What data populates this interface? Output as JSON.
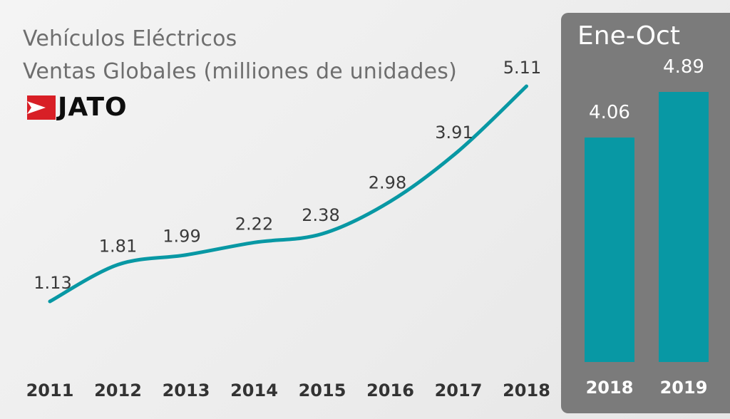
{
  "title_line1": "Vehículos Eléctricos",
  "title_line2": "Ventas Globales (milliones de unidades)",
  "logo_text": "JATO",
  "colors": {
    "line": "#0898a4",
    "bar": "#0898a4",
    "panel": "#7b7b7b",
    "logo_red": "#d81f26"
  },
  "chart_data": [
    {
      "type": "line",
      "title": "Vehículos Eléctricos Ventas Globales (milliones de unidades)",
      "x": [
        "2011",
        "2012",
        "2013",
        "2014",
        "2015",
        "2016",
        "2017",
        "2018"
      ],
      "values": [
        1.13,
        1.81,
        1.99,
        2.22,
        2.38,
        2.98,
        3.91,
        5.11
      ],
      "data_labels": [
        "1.13",
        "1.81",
        "1.99",
        "2.22",
        "2.38",
        "2.98",
        "3.91",
        "5.11"
      ],
      "ylim": [
        0,
        6
      ],
      "grid": false
    },
    {
      "type": "bar",
      "title": "Ene-Oct",
      "categories": [
        "2018",
        "2019"
      ],
      "values": [
        4.06,
        4.89
      ],
      "data_labels": [
        "4.06",
        "4.89"
      ],
      "grid": false
    }
  ]
}
